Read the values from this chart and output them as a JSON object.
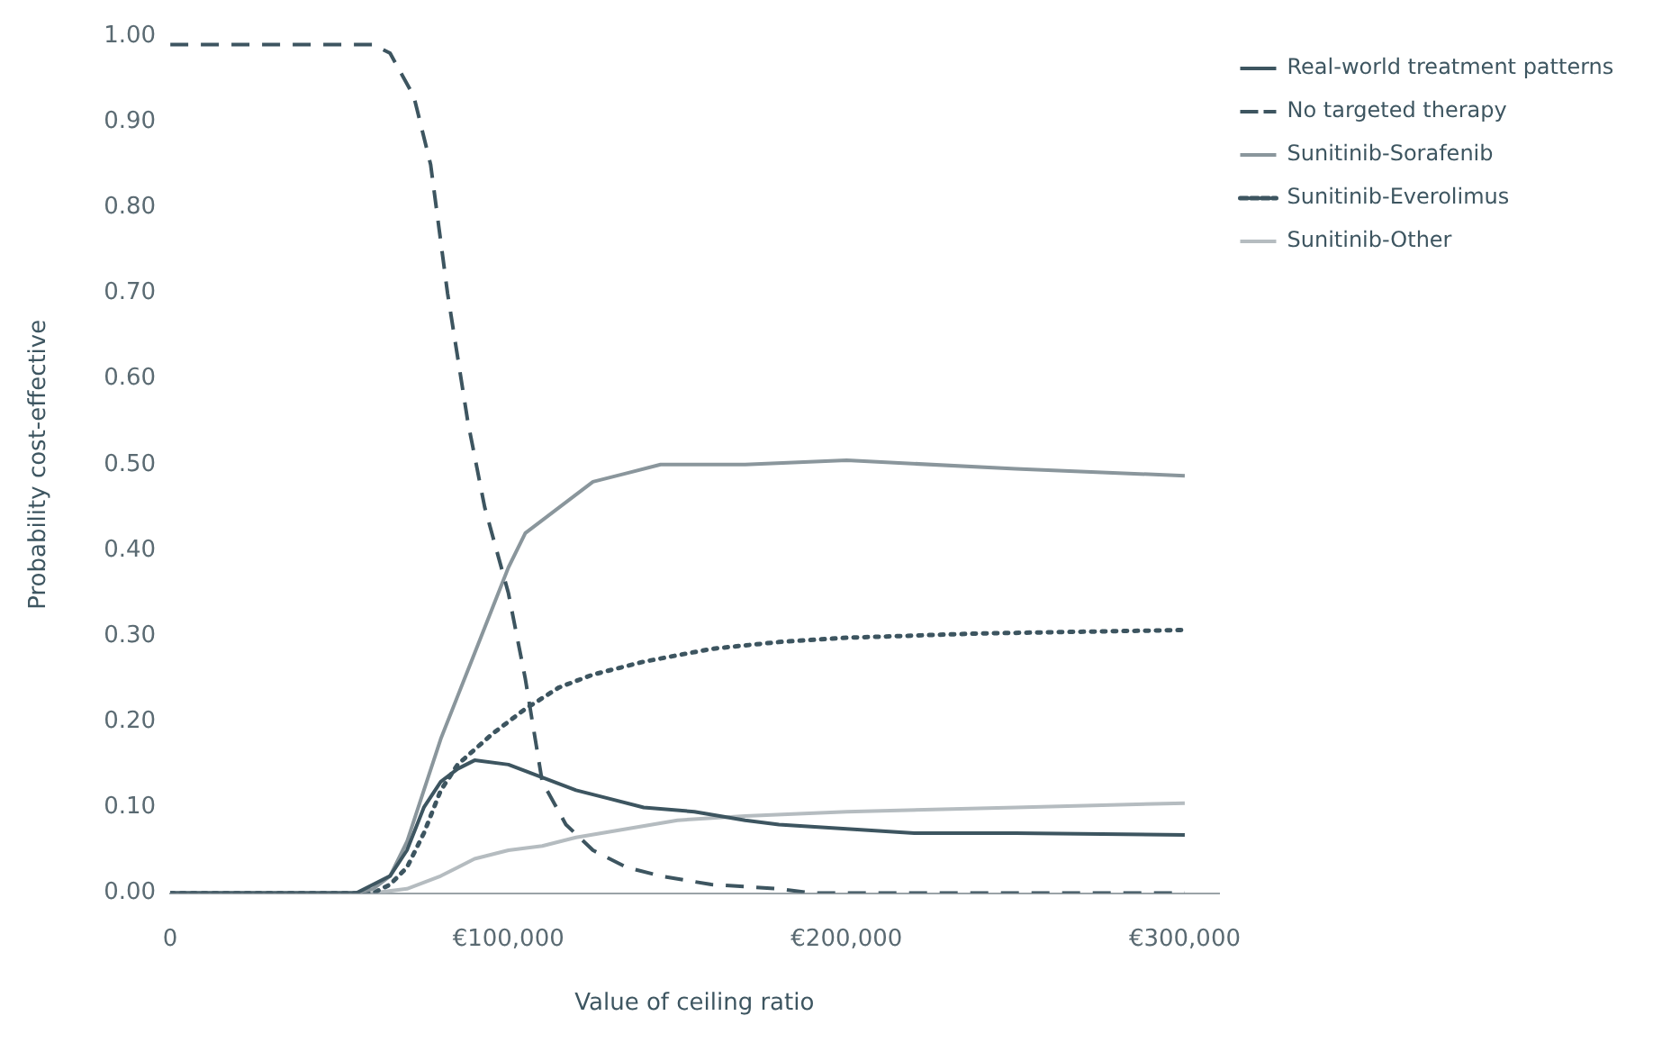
{
  "chart_data": {
    "type": "line",
    "xlabel": "Value of ceiling ratio",
    "ylabel": "Probability cost-effective",
    "xlim": [
      0,
      310000
    ],
    "xticks": [
      0,
      {
        "value": 100000,
        "label": "€100,000"
      },
      {
        "value": 200000,
        "label": "€200,000"
      },
      {
        "value": 300000,
        "label": "€300,000"
      }
    ],
    "ylim": [
      0,
      1
    ],
    "yticks": [
      {
        "value": 0,
        "label": "0.00"
      },
      {
        "value": 0.1,
        "label": "0.10"
      },
      {
        "value": 0.2,
        "label": "0.20"
      },
      {
        "value": 0.3,
        "label": "0.30"
      },
      {
        "value": 0.4,
        "label": "0.40"
      },
      {
        "value": 0.5,
        "label": "0.50"
      },
      {
        "value": 0.6,
        "label": "0.60"
      },
      {
        "value": 0.7,
        "label": "0.70"
      },
      {
        "value": 0.8,
        "label": "0.80"
      },
      {
        "value": 0.9,
        "label": "0.90"
      },
      {
        "value": 1,
        "label": "1.00"
      }
    ],
    "grid": false,
    "legend": "top right",
    "marker": "none",
    "series": [
      {
        "name": "Real-world treatment patterns",
        "color": "#3d5560",
        "line_style": "solid",
        "x": [
          0,
          55000,
          65000,
          70000,
          75000,
          80000,
          85000,
          90000,
          100000,
          110000,
          120000,
          130000,
          140000,
          155000,
          170000,
          180000,
          200000,
          220000,
          250000,
          300000
        ],
        "values": [
          0,
          0,
          0.02,
          0.05,
          0.1,
          0.13,
          0.145,
          0.155,
          0.15,
          0.135,
          0.12,
          0.11,
          0.1,
          0.095,
          0.085,
          0.08,
          0.075,
          0.07,
          0.07,
          0.068
        ]
      },
      {
        "name": "No targeted therapy",
        "color": "#3d5560",
        "line_style": "dashed",
        "x": [
          0,
          60000,
          65000,
          72000,
          77000,
          82000,
          88000,
          93000,
          100000,
          105000,
          110000,
          117000,
          125000,
          135000,
          145000,
          160000,
          180000,
          190000,
          300000
        ],
        "values": [
          0.99,
          0.99,
          0.98,
          0.93,
          0.85,
          0.7,
          0.55,
          0.45,
          0.35,
          0.25,
          0.13,
          0.08,
          0.05,
          0.03,
          0.02,
          0.01,
          0.005,
          0,
          0
        ]
      },
      {
        "name": "Sunitinib-Sorafenib",
        "color": "#8a969c",
        "line_style": "solid",
        "x": [
          0,
          55000,
          60000,
          65000,
          70000,
          75000,
          80000,
          90000,
          100000,
          105000,
          115000,
          125000,
          135000,
          145000,
          155000,
          170000,
          200000,
          250000,
          300000
        ],
        "values": [
          0,
          0,
          0.005,
          0.02,
          0.06,
          0.12,
          0.18,
          0.28,
          0.38,
          0.42,
          0.45,
          0.48,
          0.49,
          0.5,
          0.5,
          0.5,
          0.505,
          0.495,
          0.487
        ]
      },
      {
        "name": "Sunitinib-Everolimus",
        "color": "#3d5560",
        "line_style": "dotted",
        "x": [
          0,
          60000,
          65000,
          70000,
          75000,
          80000,
          85000,
          95000,
          105000,
          115000,
          125000,
          140000,
          160000,
          180000,
          200000,
          240000,
          300000
        ],
        "values": [
          0,
          0,
          0.01,
          0.03,
          0.07,
          0.12,
          0.15,
          0.185,
          0.215,
          0.24,
          0.255,
          0.27,
          0.285,
          0.293,
          0.298,
          0.303,
          0.307
        ]
      },
      {
        "name": "Sunitinib-Other",
        "color": "#b5bcc0",
        "line_style": "solid",
        "x": [
          0,
          60000,
          70000,
          80000,
          90000,
          100000,
          110000,
          120000,
          135000,
          150000,
          170000,
          200000,
          250000,
          300000
        ],
        "values": [
          0,
          0,
          0.005,
          0.02,
          0.04,
          0.05,
          0.055,
          0.065,
          0.075,
          0.085,
          0.09,
          0.095,
          0.1,
          0.105
        ]
      }
    ]
  }
}
